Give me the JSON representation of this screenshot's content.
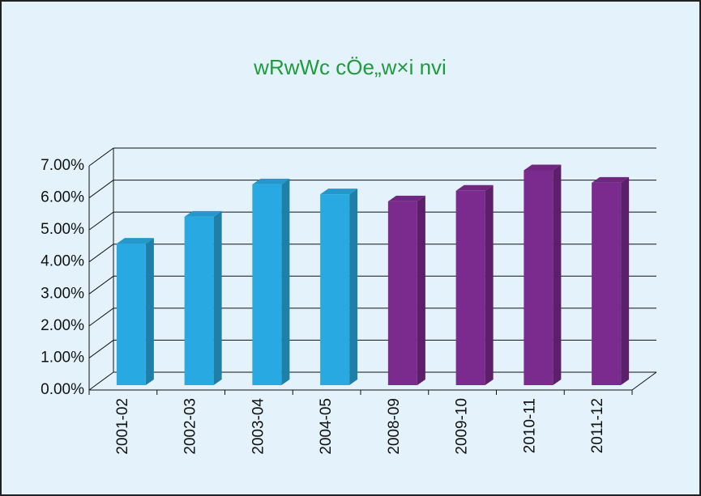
{
  "chart_data": {
    "type": "bar3d",
    "title": "wRwWc cÖe„w×i nvi",
    "categories": [
      "2001-02",
      "2002-03",
      "2003-04",
      "2004-05",
      "2008-09",
      "2009-10",
      "2010-11",
      "2011-12"
    ],
    "values": [
      4.42,
      5.26,
      6.27,
      5.96,
      5.74,
      6.07,
      6.71,
      6.32
    ],
    "colors": [
      "#29a9e1",
      "#29a9e1",
      "#29a9e1",
      "#29a9e1",
      "#7b2b8e",
      "#7b2b8e",
      "#7b2b8e",
      "#7b2b8e"
    ],
    "ylim": [
      0,
      7
    ],
    "yticks": [
      {
        "value": 0,
        "label": "0.00%"
      },
      {
        "value": 1,
        "label": "1.00%"
      },
      {
        "value": 2,
        "label": "2.00%"
      },
      {
        "value": 3,
        "label": "3.00%"
      },
      {
        "value": 4,
        "label": "4.00%"
      },
      {
        "value": 5,
        "label": "5.00%"
      },
      {
        "value": 6,
        "label": "6.00%"
      },
      {
        "value": 7,
        "label": "7.00%"
      }
    ],
    "grid": true
  }
}
